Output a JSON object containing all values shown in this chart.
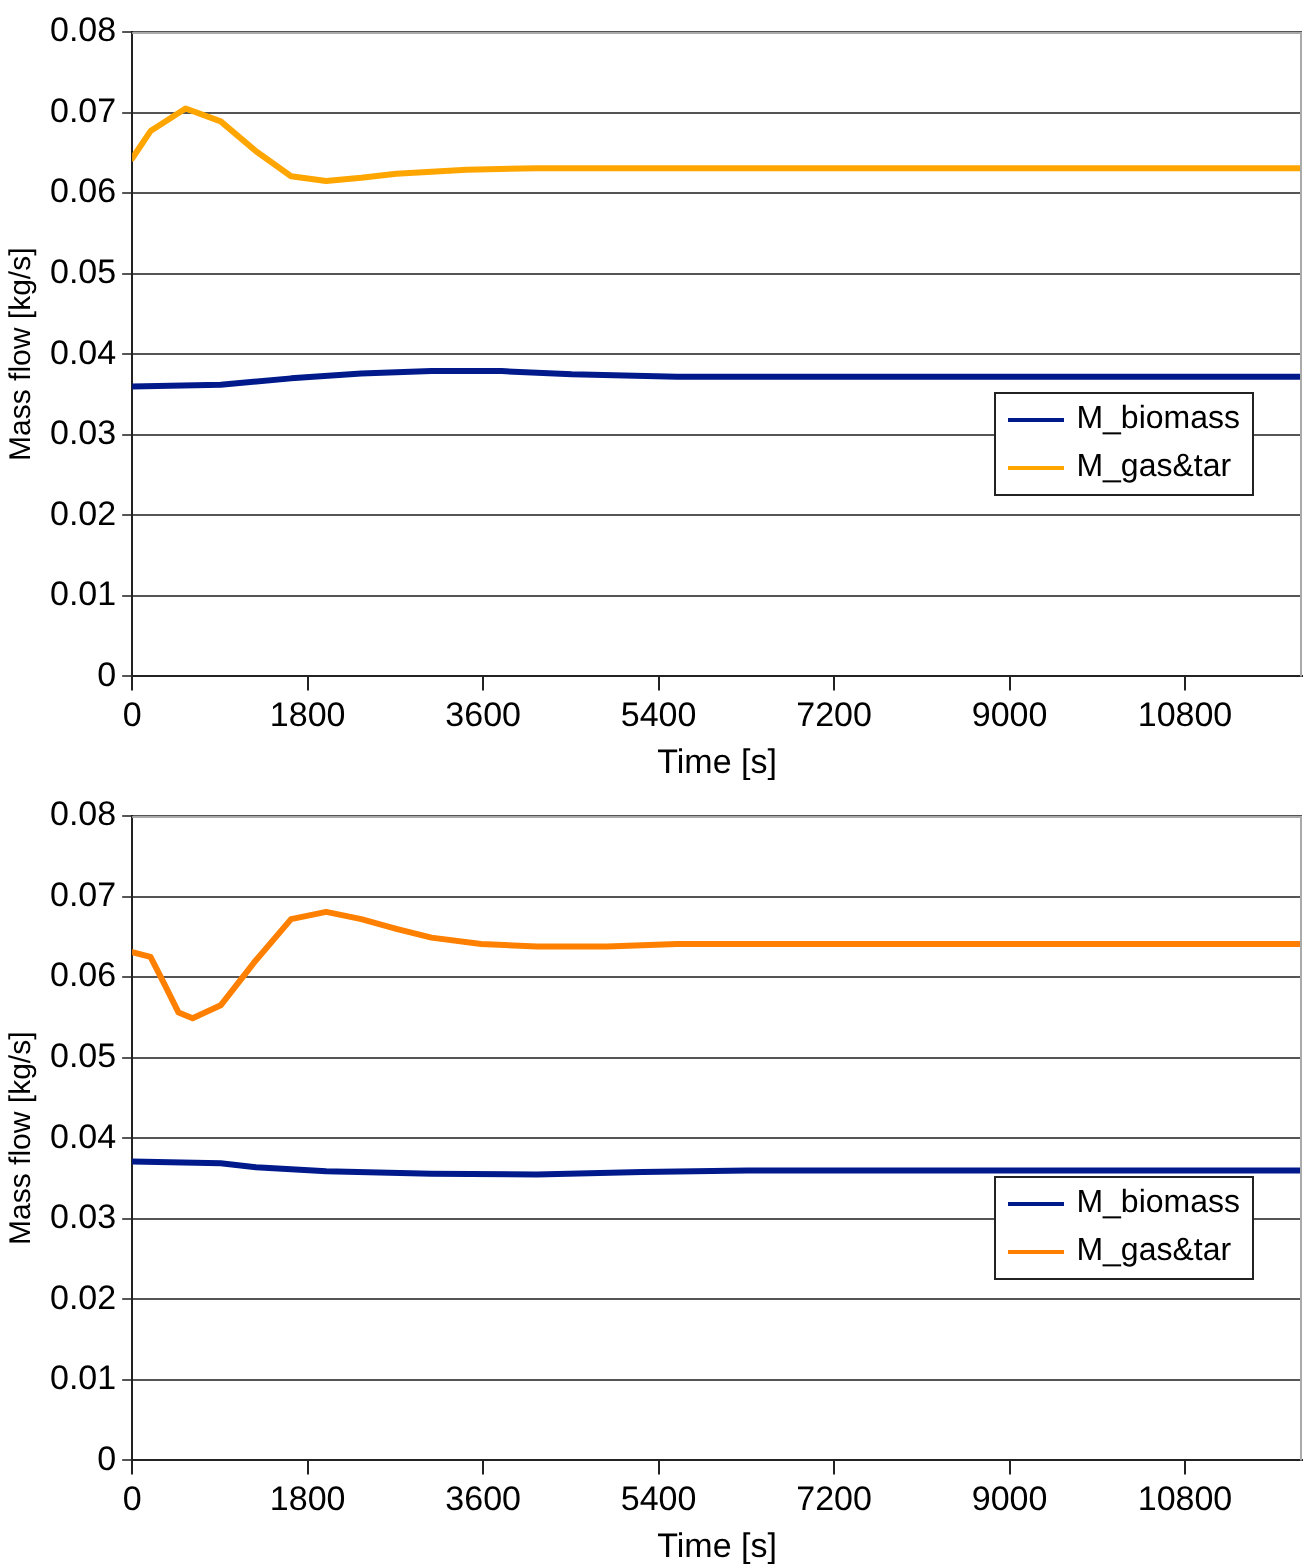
{
  "chart_data": [
    {
      "type": "line",
      "xlabel": "Time [s]",
      "ylabel": "Mass flow [kg/s]",
      "xlim": [
        0,
        12000
      ],
      "xticks": [
        0,
        1800,
        3600,
        5400,
        7200,
        9000,
        10800
      ],
      "ylim": [
        0,
        0.08
      ],
      "yticks": [
        0,
        0.01,
        0.02,
        0.03,
        0.04,
        0.05,
        0.06,
        0.07,
        0.08
      ],
      "grid": "y",
      "legend": "bottom right",
      "marker": "none",
      "line_style": "solid",
      "series": [
        {
          "name": "M_biomass",
          "color": "#001a8c",
          "x": [
            0,
            908,
            1630,
            2350,
            3070,
            3790,
            4510,
            5590,
            12000
          ],
          "values": [
            0.036,
            0.0362,
            0.037,
            0.0376,
            0.0379,
            0.0379,
            0.0375,
            0.0372,
            0.0372
          ]
        },
        {
          "name": "M_gas&tar",
          "color": "#ffa500",
          "x": [
            0,
            188,
            548,
            908,
            1270,
            1630,
            1990,
            2350,
            2710,
            3430,
            4150,
            12000
          ],
          "values": [
            0.0643,
            0.0677,
            0.0705,
            0.0689,
            0.0652,
            0.0621,
            0.0615,
            0.0619,
            0.0624,
            0.0629,
            0.0631,
            0.0631
          ]
        }
      ]
    },
    {
      "type": "line",
      "xlabel": "Time [s]",
      "ylabel": "Mass flow [kg/s]",
      "xlim": [
        0,
        12000
      ],
      "xticks": [
        0,
        1800,
        3600,
        5400,
        7200,
        9000,
        10800
      ],
      "ylim": [
        0,
        0.08
      ],
      "yticks": [
        0,
        0.01,
        0.02,
        0.03,
        0.04,
        0.05,
        0.06,
        0.07,
        0.08
      ],
      "grid": "y",
      "legend": "bottom right",
      "marker": "none",
      "line_style": "solid",
      "series": [
        {
          "name": "M_biomass",
          "color": "#001a8c",
          "x": [
            0,
            908,
            1270,
            1990,
            3070,
            4150,
            5230,
            6310,
            12000
          ],
          "values": [
            0.0371,
            0.0369,
            0.0364,
            0.0359,
            0.0356,
            0.0355,
            0.0358,
            0.036,
            0.036
          ]
        },
        {
          "name": "M_gas&tar",
          "color": "#ff8000",
          "x": [
            0,
            188,
            332,
            476,
            620,
            908,
            1270,
            1630,
            1990,
            2350,
            2710,
            3070,
            3580,
            4150,
            4870,
            5590,
            12000
          ],
          "values": [
            0.0631,
            0.0625,
            0.0591,
            0.0556,
            0.0549,
            0.0565,
            0.0621,
            0.0672,
            0.0681,
            0.0672,
            0.066,
            0.0649,
            0.0641,
            0.0638,
            0.0638,
            0.0641,
            0.0641
          ]
        }
      ]
    }
  ]
}
